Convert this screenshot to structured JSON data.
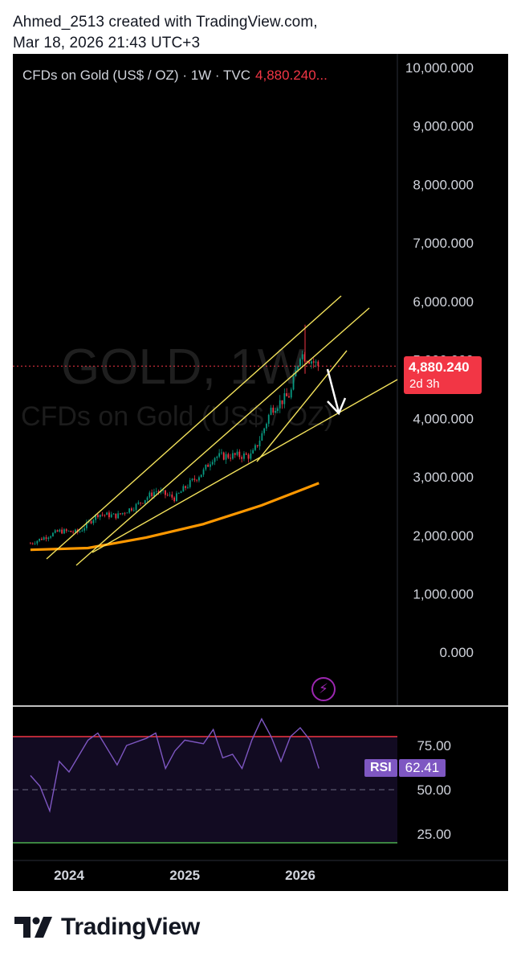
{
  "header": {
    "line1": "Ahmed_2513 created with TradingView.com,",
    "line2": "Mar 18, 2026 21:43 UTC+3"
  },
  "legend": {
    "symbol_text": "CFDs on Gold (US$ / OZ) · 1W · TVC",
    "price_text": "4,880.240..."
  },
  "watermark": {
    "ticker": "GOLD, 1W",
    "description": "CFDs on Gold (US$ / OZ)"
  },
  "price_tag": {
    "price": "4,880.240",
    "countdown": "2d 3h"
  },
  "rsi_tag": {
    "label": "RSI",
    "value": "62.41"
  },
  "brand": {
    "name": "TradingView"
  },
  "colors": {
    "up": "#089981",
    "down": "#f23645",
    "trendline": "#f2e15b",
    "ma": "#ff9800",
    "rsi_line": "#7e57c2",
    "rsi_upper": "#f23645",
    "rsi_lower": "#4caf50",
    "arrow": "#ffffff"
  },
  "chart_data": {
    "type": "candlestick",
    "price_axis": {
      "ticks": [
        10000,
        9000,
        8000,
        7000,
        6000,
        5000,
        4000,
        3000,
        2000,
        1000,
        0
      ],
      "labels": [
        "10,000.000",
        "9,000.000",
        "8,000.000",
        "7,000.000",
        "6,000.000",
        "5,000.000",
        "4,000.000",
        "3,000.000",
        "2,000.000",
        "1,000.000",
        "0.000"
      ],
      "range": [
        0,
        10000
      ]
    },
    "time_axis": {
      "labels": [
        "2024",
        "2025",
        "2026"
      ]
    },
    "current_price": 4880.24,
    "close_path": [
      [
        "2023-09",
        1850
      ],
      [
        "2023-11",
        1990
      ],
      [
        "2023-12",
        2060
      ],
      [
        "2024-02",
        2040
      ],
      [
        "2024-04",
        2350
      ],
      [
        "2024-06",
        2320
      ],
      [
        "2024-08",
        2500
      ],
      [
        "2024-10",
        2750
      ],
      [
        "2024-12",
        2620
      ],
      [
        "2025-01",
        2800
      ],
      [
        "2025-03",
        3080
      ],
      [
        "2025-04",
        3330
      ],
      [
        "2025-06",
        3350
      ],
      [
        "2025-08",
        3350
      ],
      [
        "2025-09",
        3700
      ],
      [
        "2025-10",
        4150
      ],
      [
        "2025-12",
        4400
      ],
      [
        "2026-01",
        5100
      ],
      [
        "2026-02",
        5000
      ],
      [
        "2026-03",
        4880
      ]
    ],
    "moving_average_path": [
      [
        "2023-09",
        1740
      ],
      [
        "2024-03",
        1770
      ],
      [
        "2024-09",
        1950
      ],
      [
        "2025-03",
        2180
      ],
      [
        "2025-09",
        2500
      ],
      [
        "2026-03",
        2880
      ]
    ],
    "rsi": {
      "levels": {
        "upper": 80,
        "middle": 50,
        "lower": 20
      },
      "axis_labels": [
        "75.00",
        "50.00",
        "25.00"
      ],
      "current": 62.41,
      "path": [
        [
          "2023-09",
          58
        ],
        [
          "2023-10",
          52
        ],
        [
          "2023-11",
          38
        ],
        [
          "2023-12",
          66
        ],
        [
          "2024-01",
          60
        ],
        [
          "2024-03",
          78
        ],
        [
          "2024-04",
          82
        ],
        [
          "2024-06",
          64
        ],
        [
          "2024-07",
          75
        ],
        [
          "2024-09",
          79
        ],
        [
          "2024-10",
          82
        ],
        [
          "2024-11",
          62
        ],
        [
          "2024-12",
          72
        ],
        [
          "2025-01",
          78
        ],
        [
          "2025-03",
          76
        ],
        [
          "2025-04",
          84
        ],
        [
          "2025-05",
          68
        ],
        [
          "2025-06",
          70
        ],
        [
          "2025-07",
          62
        ],
        [
          "2025-08",
          78
        ],
        [
          "2025-09",
          90
        ],
        [
          "2025-10",
          80
        ],
        [
          "2025-11",
          66
        ],
        [
          "2025-12",
          80
        ],
        [
          "2026-01",
          85
        ],
        [
          "2026-02",
          78
        ],
        [
          "2026-03",
          62
        ]
      ]
    }
  }
}
